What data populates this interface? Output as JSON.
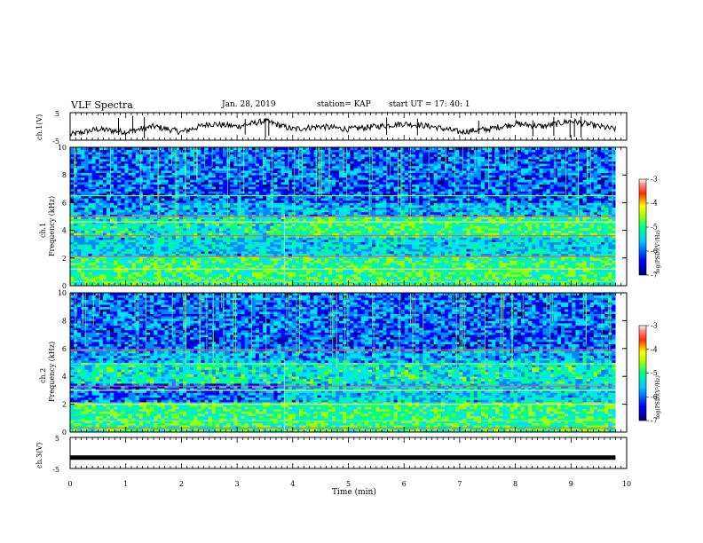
{
  "header": {
    "title": "VLF Spectra",
    "date": "Jan. 28, 2019",
    "station": "station= KAP",
    "start": "start UT =  17: 40: 1"
  },
  "colors": {
    "colormap": [
      "#00006e",
      "#0000ff",
      "#0088ff",
      "#00e0ff",
      "#00ff88",
      "#a0ff00",
      "#ffff00",
      "#ff8800",
      "#ff0000",
      "#ffffff"
    ]
  },
  "chart_data": [
    {
      "type": "line",
      "panel": "ch1-waveform",
      "ylabel": "ch.1(V)",
      "ylim": [
        -5,
        5
      ],
      "yticks": [
        "5",
        "-5"
      ],
      "x": [
        0,
        0.5,
        1,
        1.5,
        2,
        2.5,
        3,
        3.5,
        4,
        4.5,
        5,
        5.5,
        6,
        6.5,
        7,
        7.5,
        8,
        8.5,
        9,
        9.5,
        9.8
      ],
      "y": [
        -3,
        -1,
        -2,
        0,
        -2,
        1,
        0,
        2,
        -1,
        0,
        -1,
        0,
        1,
        0,
        -2,
        -1,
        1,
        0,
        2,
        0,
        -1
      ]
    },
    {
      "type": "heatmap",
      "panel": "ch1-spectrogram",
      "ylabel": "ch.1",
      "ylabel2": "Frequency (kHz)",
      "ylim": [
        0,
        10
      ],
      "yticks": [
        "0",
        "2",
        "4",
        "6",
        "8",
        "10"
      ],
      "colorbar": {
        "label": "log(PSD)(V²/Hz)",
        "range": [
          -7,
          -3
        ],
        "ticks": [
          "-3",
          "-4",
          "-5",
          "-6",
          "-7"
        ]
      },
      "bands_khz": [
        5.0,
        4.6,
        6.5,
        2.1,
        1.2,
        0.3,
        3.6
      ],
      "regime_change_min": 3.85
    },
    {
      "type": "heatmap",
      "panel": "ch2-spectrogram",
      "ylabel": "ch.2",
      "ylabel2": "Frequency (kHz)",
      "ylim": [
        0,
        10
      ],
      "yticks": [
        "0",
        "2",
        "4",
        "6",
        "8",
        "10"
      ],
      "colorbar": {
        "label": "log(PSD)(V²/Hz)",
        "range": [
          -7,
          -3
        ],
        "ticks": [
          "-3",
          "-4",
          "-5",
          "-6",
          "-7"
        ]
      },
      "bands_khz": [
        3.3,
        3.0,
        4.9,
        5.9,
        2.0,
        0.8,
        0.3
      ],
      "regime_change_min": 3.85
    },
    {
      "type": "line",
      "panel": "ch3-waveform",
      "ylabel": "ch.3(V)",
      "ylim": [
        -5,
        5
      ],
      "yticks": [
        "5",
        "-5"
      ],
      "x": [
        0,
        9.8
      ],
      "y": [
        -1.5,
        -1.5
      ]
    }
  ],
  "xaxis": {
    "label": "Time (min)",
    "ticks": [
      "0",
      "1",
      "2",
      "3",
      "4",
      "5",
      "6",
      "7",
      "8",
      "9",
      "10"
    ],
    "range": [
      0,
      10
    ]
  }
}
